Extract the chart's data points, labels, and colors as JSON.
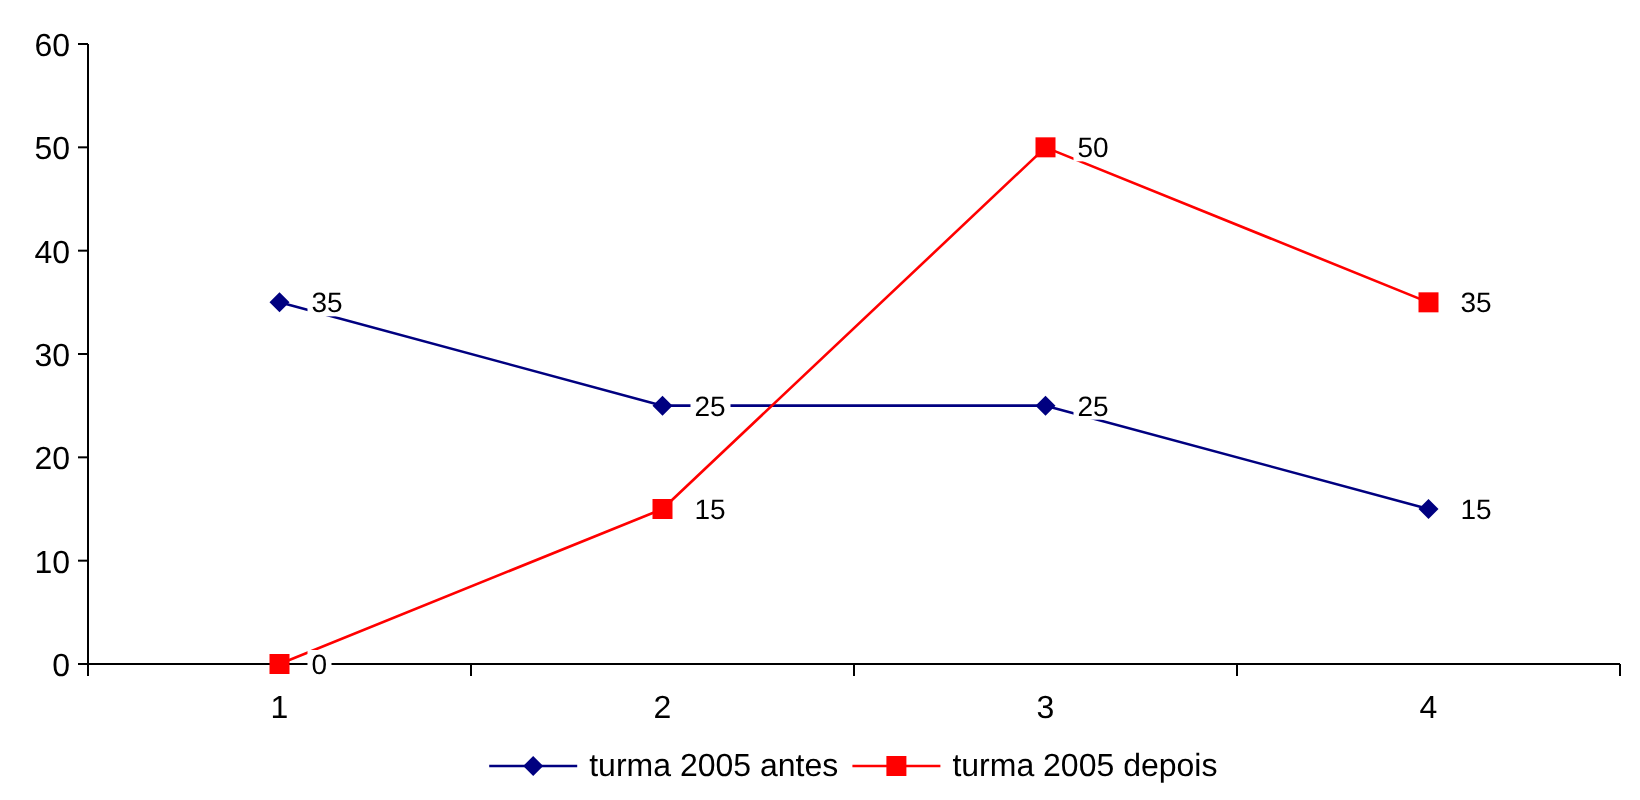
{
  "chart_data": {
    "type": "line",
    "categories": [
      "1",
      "2",
      "3",
      "4"
    ],
    "series": [
      {
        "name": "turma 2005 antes",
        "color": "#000080",
        "marker": "diamond",
        "values": [
          35,
          25,
          25,
          15
        ]
      },
      {
        "name": "turma 2005 depois",
        "color": "#ff0000",
        "marker": "square",
        "values": [
          0,
          15,
          50,
          35
        ]
      }
    ],
    "ylim": [
      0,
      60
    ],
    "yticks": [
      0,
      10,
      20,
      30,
      40,
      50,
      60
    ],
    "grid": false,
    "legend": "bottom",
    "data_labels": true,
    "line_style": "solid"
  }
}
